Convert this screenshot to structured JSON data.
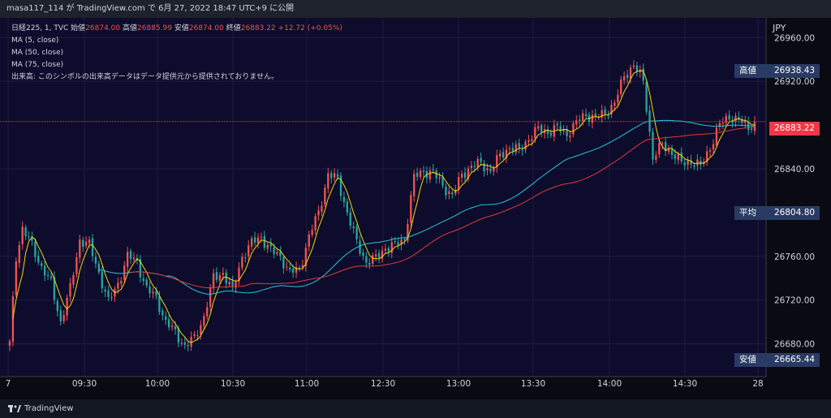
{
  "watermark": "masa117_114 が TradingView.com で 6月 27, 2022 18:47 UTC+9 に公開",
  "legend": {
    "symbol": "日経225, 1, TVC",
    "open_label": "始値",
    "open": "26874.00",
    "high_label": "高値",
    "high": "26885.99",
    "low_label": "安値",
    "low": "26874.00",
    "close_label": "終値",
    "close": "26883.22",
    "change": "+12.72 (+0.05%)",
    "ma1": "MA (5, close)",
    "ma2": "MA (50, close)",
    "ma3": "MA (75, close)",
    "volume_note": "出来高: このシンボルの出来高データはデータ提供元から提供されておりません。"
  },
  "price_tags": {
    "currency": "JPY",
    "high_label": "高値",
    "high_value": "26938.43",
    "avg_label": "平均",
    "avg_value": "26804.80",
    "low_label": "安値",
    "low_value": "26665.44",
    "last_value": "26883.22"
  },
  "footer": {
    "brand": "TradingView"
  },
  "colors": {
    "up": "#ef5350",
    "down": "#26a69a",
    "ma5": "#f5d60b",
    "ma50": "#26c6da",
    "ma75": "#e53935",
    "last_price": "#f23645",
    "tag_bg": "#2a3b63"
  },
  "chart_data": {
    "type": "candlestick",
    "x_ticks": [
      "7",
      "09:30",
      "10:00",
      "10:30",
      "11:00",
      "12:30",
      "13:00",
      "13:30",
      "14:00",
      "14:30",
      "28"
    ],
    "y_ticks": [
      26960,
      26920,
      26840,
      26760,
      26720,
      26680
    ],
    "ylim": [
      26650,
      26978
    ],
    "last_price": 26883.22,
    "close_path": [
      [
        0,
        26680
      ],
      [
        2,
        26760
      ],
      [
        4,
        26785
      ],
      [
        7,
        26770
      ],
      [
        10,
        26750
      ],
      [
        13,
        26735
      ],
      [
        16,
        26700
      ],
      [
        19,
        26730
      ],
      [
        22,
        26775
      ],
      [
        25,
        26770
      ],
      [
        28,
        26745
      ],
      [
        31,
        26718
      ],
      [
        34,
        26735
      ],
      [
        37,
        26760
      ],
      [
        40,
        26755
      ],
      [
        43,
        26730
      ],
      [
        46,
        26722
      ],
      [
        49,
        26700
      ],
      [
        52,
        26690
      ],
      [
        55,
        26678
      ],
      [
        58,
        26685
      ],
      [
        61,
        26705
      ],
      [
        64,
        26740
      ],
      [
        67,
        26745
      ],
      [
        70,
        26728
      ],
      [
        73,
        26760
      ],
      [
        76,
        26772
      ],
      [
        79,
        26778
      ],
      [
        82,
        26765
      ],
      [
        85,
        26760
      ],
      [
        88,
        26745
      ],
      [
        91,
        26748
      ],
      [
        94,
        26778
      ],
      [
        97,
        26800
      ],
      [
        100,
        26835
      ],
      [
        103,
        26830
      ],
      [
        106,
        26800
      ],
      [
        109,
        26772
      ],
      [
        112,
        26755
      ],
      [
        115,
        26758
      ],
      [
        118,
        26768
      ],
      [
        121,
        26770
      ],
      [
        124,
        26776
      ],
      [
        127,
        26832
      ],
      [
        130,
        26838
      ],
      [
        133,
        26836
      ],
      [
        136,
        26825
      ],
      [
        139,
        26815
      ],
      [
        142,
        26835
      ],
      [
        145,
        26842
      ],
      [
        148,
        26845
      ],
      [
        151,
        26838
      ],
      [
        154,
        26852
      ],
      [
        157,
        26860
      ],
      [
        160,
        26856
      ],
      [
        163,
        26868
      ],
      [
        166,
        26876
      ],
      [
        169,
        26874
      ],
      [
        172,
        26877
      ],
      [
        175,
        26872
      ],
      [
        178,
        26882
      ],
      [
        181,
        26890
      ],
      [
        184,
        26886
      ],
      [
        187,
        26891
      ],
      [
        190,
        26900
      ],
      [
        193,
        26925
      ],
      [
        196,
        26935
      ],
      [
        199,
        26920
      ],
      [
        202,
        26850
      ],
      [
        205,
        26862
      ],
      [
        208,
        26855
      ],
      [
        211,
        26845
      ],
      [
        214,
        26847
      ],
      [
        217,
        26842
      ],
      [
        220,
        26860
      ],
      [
        223,
        26880
      ],
      [
        226,
        26888
      ],
      [
        229,
        26884
      ],
      [
        232,
        26878
      ],
      [
        234,
        26883.22
      ]
    ]
  }
}
